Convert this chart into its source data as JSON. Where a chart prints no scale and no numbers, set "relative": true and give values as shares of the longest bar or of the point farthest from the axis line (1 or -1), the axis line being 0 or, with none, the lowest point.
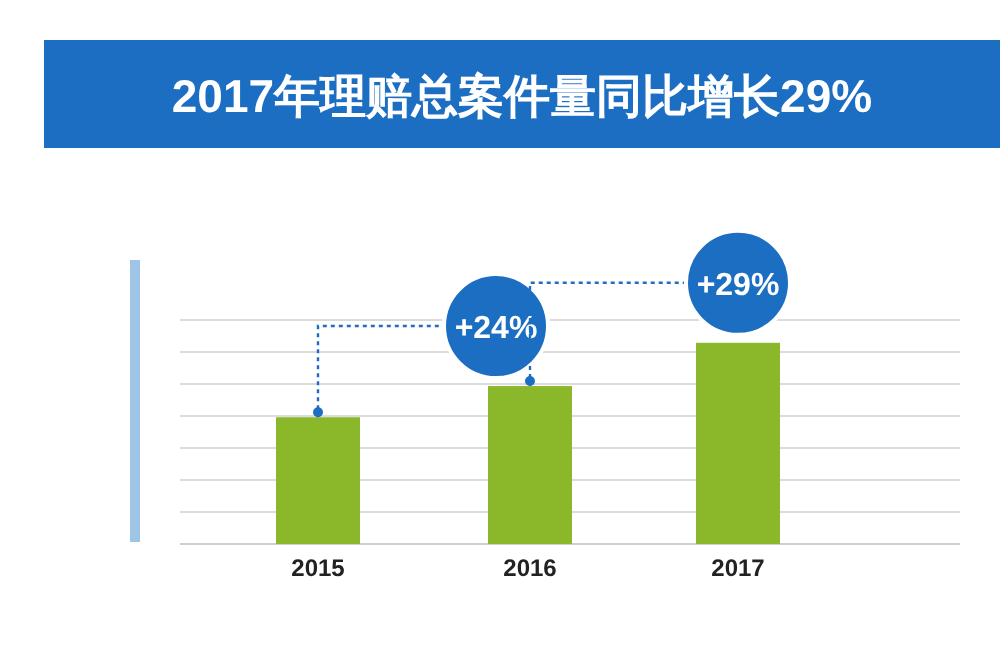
{
  "chart_data": {
    "type": "bar",
    "title": "2017年理赔总案件量同比增长29%",
    "categories": [
      "2015",
      "2016",
      "2017"
    ],
    "values": [
      0.63,
      0.785,
      1
    ],
    "color": "#8bb82b",
    "relative": true,
    "grid": "y",
    "annotations": [
      {
        "text": "+24%",
        "x": "2015",
        "y": 0.63
      },
      {
        "text": "+29%",
        "x": "2016",
        "y": 0.785
      }
    ]
  }
}
